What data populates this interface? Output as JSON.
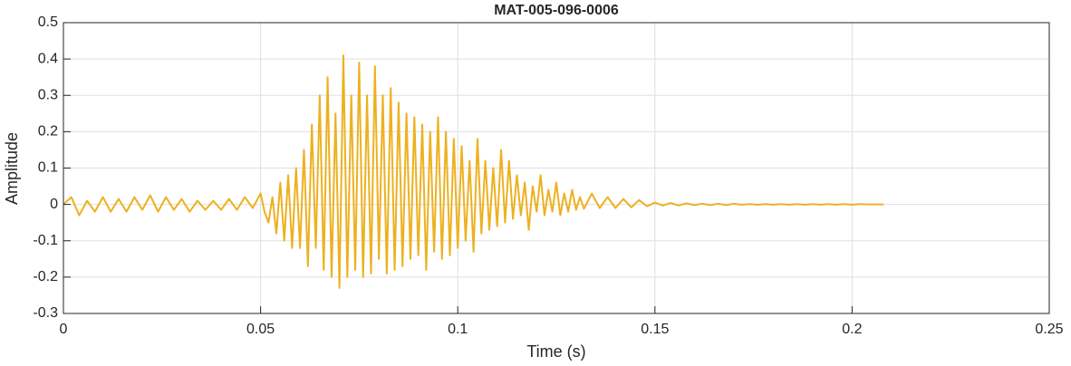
{
  "chart_data": {
    "type": "line",
    "title": "MAT-005-096-0006",
    "x_label": "Time (s)",
    "y_label": "Amplitude",
    "xlim": [
      0,
      0.25
    ],
    "xticks": [
      0,
      0.05,
      0.1,
      0.15,
      0.2,
      0.25
    ],
    "ylim": [
      -0.3,
      0.5
    ],
    "yticks": [
      -0.3,
      -0.2,
      -0.1,
      0,
      0.1,
      0.2,
      0.3,
      0.4,
      0.5
    ],
    "grid": true,
    "x": [
      0,
      0.002,
      0.004,
      0.006,
      0.008,
      0.01,
      0.012,
      0.014,
      0.016,
      0.018,
      0.02,
      0.022,
      0.024,
      0.026,
      0.028,
      0.03,
      0.032,
      0.034,
      0.036,
      0.038,
      0.04,
      0.042,
      0.044,
      0.046,
      0.048,
      0.049,
      0.05,
      0.051,
      0.052,
      0.053,
      0.054,
      0.055,
      0.056,
      0.057,
      0.058,
      0.059,
      0.06,
      0.061,
      0.062,
      0.063,
      0.064,
      0.065,
      0.066,
      0.067,
      0.068,
      0.069,
      0.07,
      0.071,
      0.072,
      0.073,
      0.074,
      0.075,
      0.076,
      0.077,
      0.078,
      0.079,
      0.08,
      0.081,
      0.082,
      0.083,
      0.084,
      0.085,
      0.086,
      0.087,
      0.088,
      0.089,
      0.09,
      0.091,
      0.092,
      0.093,
      0.094,
      0.095,
      0.096,
      0.097,
      0.098,
      0.099,
      0.1,
      0.101,
      0.102,
      0.103,
      0.104,
      0.105,
      0.106,
      0.107,
      0.108,
      0.109,
      0.11,
      0.111,
      0.112,
      0.113,
      0.114,
      0.115,
      0.116,
      0.117,
      0.118,
      0.119,
      0.12,
      0.121,
      0.122,
      0.123,
      0.124,
      0.125,
      0.126,
      0.127,
      0.128,
      0.129,
      0.13,
      0.131,
      0.132,
      0.134,
      0.136,
      0.138,
      0.14,
      0.142,
      0.144,
      0.146,
      0.148,
      0.15,
      0.152,
      0.154,
      0.156,
      0.158,
      0.16,
      0.162,
      0.164,
      0.166,
      0.168,
      0.17,
      0.172,
      0.174,
      0.176,
      0.178,
      0.18,
      0.182,
      0.184,
      0.186,
      0.188,
      0.19,
      0.192,
      0.194,
      0.196,
      0.198,
      0.2,
      0.202,
      0.204,
      0.206,
      0.208
    ],
    "series": [
      {
        "color": "#EDB120",
        "values": [
          0,
          0.02,
          -0.03,
          0.01,
          -0.02,
          0.02,
          -0.02,
          0.015,
          -0.02,
          0.02,
          -0.015,
          0.025,
          -0.02,
          0.02,
          -0.015,
          0.015,
          -0.02,
          0.01,
          -0.015,
          0.01,
          -0.015,
          0.015,
          -0.015,
          0.02,
          -0.01,
          0.01,
          0.03,
          -0.02,
          -0.05,
          0.02,
          -0.08,
          0.06,
          -0.1,
          0.08,
          -0.12,
          0.1,
          -0.12,
          0.15,
          -0.17,
          0.22,
          -0.12,
          0.3,
          -0.18,
          0.35,
          -0.2,
          0.25,
          -0.23,
          0.41,
          -0.2,
          0.3,
          -0.18,
          0.39,
          -0.2,
          0.3,
          -0.19,
          0.38,
          -0.15,
          0.3,
          -0.19,
          0.32,
          -0.18,
          0.28,
          -0.17,
          0.25,
          -0.15,
          0.24,
          -0.14,
          0.22,
          -0.18,
          0.2,
          -0.13,
          0.24,
          -0.15,
          0.2,
          -0.14,
          0.18,
          -0.12,
          0.16,
          -0.1,
          0.12,
          -0.13,
          0.18,
          -0.08,
          0.12,
          -0.07,
          0.1,
          -0.06,
          0.15,
          -0.05,
          0.12,
          -0.04,
          0.08,
          -0.03,
          0.06,
          -0.07,
          0.05,
          -0.02,
          0.08,
          -0.03,
          0.04,
          -0.02,
          0.06,
          -0.03,
          0.03,
          -0.02,
          0.04,
          -0.015,
          0.02,
          -0.012,
          0.03,
          -0.01,
          0.02,
          -0.01,
          0.015,
          -0.008,
          0.012,
          -0.005,
          0.005,
          -0.003,
          0.004,
          -0.003,
          0.003,
          -0.002,
          0.002,
          -0.002,
          0.002,
          -0.002,
          0.002,
          -0.001,
          0.001,
          -0.001,
          0.001,
          -0.001,
          0.001,
          -0.001,
          0.001,
          -0.001,
          0.001,
          -0.001,
          0.001,
          -0.001,
          0.001,
          -0.001,
          0.001,
          0,
          0,
          0
        ]
      }
    ]
  }
}
